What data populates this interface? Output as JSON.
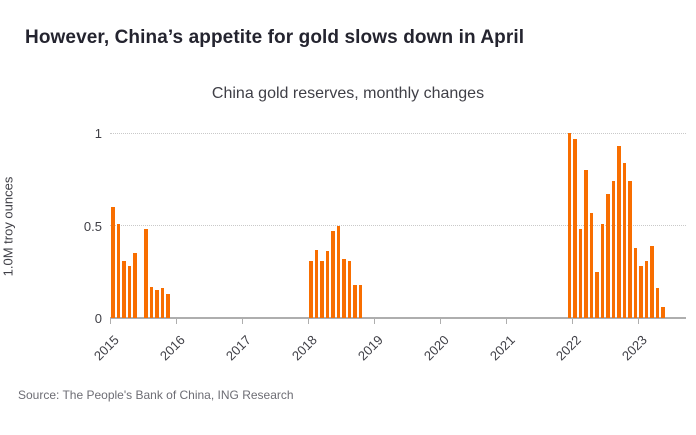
{
  "header": {
    "title": "However, China’s appetite for gold slows down in April"
  },
  "chart_data": {
    "type": "bar",
    "title": "China gold reserves, monthly changes",
    "xlabel": "",
    "ylabel": "1.0M troy ounces",
    "ylim": [
      0,
      1.05
    ],
    "yticks": [
      0,
      0.5,
      1
    ],
    "ytick_labels": [
      "0",
      "0.5",
      "1"
    ],
    "xtick_labels": [
      "2015",
      "2016",
      "2017",
      "2018",
      "2019",
      "2020",
      "2021",
      "2022",
      "2023"
    ],
    "months_per_tick": 12,
    "grid": true,
    "legend_position": "none",
    "bar_color": "#f86e00",
    "series": [
      {
        "start_month_index": 0,
        "values": [
          0.6,
          0.51,
          0.31,
          0.28,
          0.35,
          null,
          0.48,
          0.17,
          0.15,
          0.16,
          0.13
        ]
      },
      {
        "start_month_index": 36,
        "values": [
          0.31,
          0.37,
          0.31,
          0.36,
          0.47,
          0.5,
          0.32,
          0.31,
          0.18,
          0.18
        ]
      },
      {
        "start_month_index": 83,
        "values": [
          1.0,
          0.97,
          0.48,
          0.8,
          0.57,
          0.25,
          0.51,
          0.67,
          0.74,
          0.93,
          0.84,
          0.74,
          0.38,
          0.28,
          0.31,
          0.39,
          0.16,
          0.06
        ]
      }
    ]
  },
  "footer": {
    "source": "Source: The People's Bank of China, ING Research"
  },
  "colors": {
    "bar": "#f86e00",
    "title_text": "#24242f",
    "axis_text": "#3f3f46",
    "axis_line": "#aeaeae",
    "gridline": "#c9c9c9",
    "source_text": "#6d6d74",
    "background": "#ffffff"
  }
}
